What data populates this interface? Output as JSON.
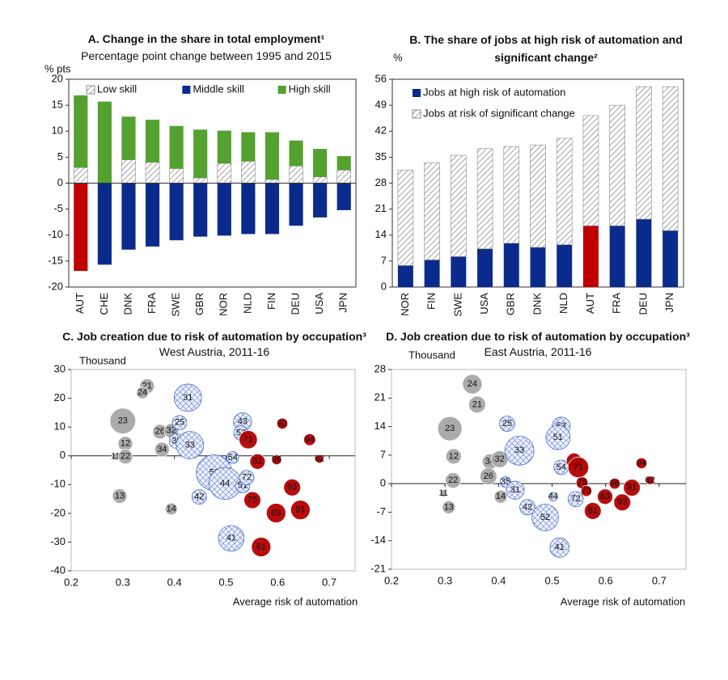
{
  "chart_data": [
    {
      "type": "bar",
      "title": "A. Change in the share in total employment¹",
      "subtitle": "Percentage point change between 1995 and 2015",
      "ylabel": "% pts",
      "legend": "top",
      "categories": [
        "AUT",
        "CHE",
        "DNK",
        "FRA",
        "SWE",
        "GBR",
        "NOR",
        "NLD",
        "FIN",
        "DEU",
        "USA",
        "JPN"
      ],
      "series": [
        {
          "name": "Low skill",
          "color": "#7f7f7f",
          "pattern": "hatch",
          "values": [
            3,
            0,
            4.5,
            4,
            2.8,
            1,
            3.8,
            4.2,
            0.7,
            3.3,
            1.2,
            2.5
          ]
        },
        {
          "name": "Middle skill",
          "color": "#0b2b8c",
          "colors": [
            "#c00000",
            "#0b2b8c",
            "#0b2b8c",
            "#0b2b8c",
            "#0b2b8c",
            "#0b2b8c",
            "#0b2b8c",
            "#0b2b8c",
            "#0b2b8c",
            "#0b2b8c",
            "#0b2b8c",
            "#0b2b8c"
          ],
          "values": [
            -16.9,
            -15.7,
            -12.8,
            -12.2,
            -11,
            -10.3,
            -10.1,
            -9.8,
            -9.8,
            -8.2,
            -6.6,
            -5.2
          ]
        },
        {
          "name": "High skill",
          "color": "#53a12f",
          "values": [
            13.9,
            15.7,
            8.3,
            8.2,
            8.2,
            9.3,
            6.3,
            5.6,
            9.1,
            4.9,
            5.4,
            2.7
          ]
        }
      ],
      "ylim": [
        -20,
        20
      ],
      "yticks": [
        -20,
        -15,
        -10,
        -5,
        0,
        5,
        10,
        15,
        20
      ]
    },
    {
      "type": "bar",
      "title": "B. The share of jobs at high risk of automation and significant change²",
      "ylabel": "%",
      "legend": "upper left",
      "categories": [
        "NOR",
        "FIN",
        "SWE",
        "USA",
        "GBR",
        "DNK",
        "NLD",
        "AUT",
        "FRA",
        "DEU",
        "JPN"
      ],
      "series": [
        {
          "name": "Jobs at high risk of automation",
          "color": "#0b2b8c",
          "colors": [
            "#0b2b8c",
            "#0b2b8c",
            "#0b2b8c",
            "#0b2b8c",
            "#0b2b8c",
            "#0b2b8c",
            "#0b2b8c",
            "#c00000",
            "#0b2b8c",
            "#0b2b8c",
            "#0b2b8c"
          ],
          "values": [
            5.8,
            7.3,
            8.2,
            10.3,
            11.8,
            10.7,
            11.4,
            16.5,
            16.5,
            18.3,
            15.2
          ]
        },
        {
          "name": "Jobs at risk of significant change",
          "color": "#7f7f7f",
          "pattern": "hatch",
          "values": [
            25.7,
            26.2,
            27.3,
            27.0,
            26.0,
            27.6,
            28.7,
            29.7,
            32.5,
            35.7,
            38.8
          ]
        }
      ],
      "ylim": [
        0,
        56
      ],
      "yticks": [
        0,
        7,
        14,
        21,
        28,
        35,
        42,
        49,
        56
      ]
    },
    {
      "type": "bubble",
      "title": "C. Job creation due to risk of automation by occupation³",
      "subtitle": "West Austria, 2011-16",
      "ylabel": "Thousand",
      "xlabel": "Average risk of automation",
      "xlim": [
        0.2,
        0.75
      ],
      "xticks": [
        0.2,
        0.3,
        0.4,
        0.5,
        0.6,
        0.7
      ],
      "ylim": [
        -40,
        30
      ],
      "yticks": [
        -40,
        -30,
        -20,
        -10,
        0,
        10,
        20,
        30
      ],
      "series": [
        {
          "color": "#a6a6a6",
          "labels": [
            "21",
            "24",
            "23",
            "26",
            "32",
            "12",
            "34",
            "11",
            "22",
            "13",
            "14"
          ],
          "x": [
            0.347,
            0.338,
            0.3,
            0.372,
            0.394,
            0.305,
            0.376,
            0.286,
            0.305,
            0.294,
            0.394
          ],
          "values": [
            24.2,
            21.9,
            12.1,
            8.4,
            8.7,
            4.2,
            2.2,
            -0.3,
            -0.3,
            -14,
            -18.5
          ],
          "sizes": [
            9,
            6,
            28,
            9,
            9,
            9,
            9,
            2,
            9,
            9,
            6
          ]
        },
        {
          "color": "#3a5fcd",
          "pattern": "crosshatch",
          "labels": [
            "31",
            "25",
            "35",
            "33",
            "43",
            "53",
            "54",
            "52",
            "44",
            "51",
            "72",
            "42",
            "41"
          ],
          "x": [
            0.426,
            0.41,
            0.404,
            0.43,
            0.532,
            0.529,
            0.513,
            0.477,
            0.498,
            0.532,
            0.54,
            0.448,
            0.51
          ],
          "values": [
            20.2,
            11.5,
            5.1,
            3.7,
            11.8,
            7.9,
            -0.6,
            -5.9,
            -9.6,
            -10.4,
            -7.6,
            -14.3,
            -28.7
          ],
          "sizes": [
            32,
            9,
            9,
            32,
            14,
            9,
            6,
            54,
            44,
            9,
            9,
            9,
            28
          ]
        },
        {
          "color": "#b30000",
          "labels": [
            "62",
            "92",
            "71",
            "81",
            "96",
            "94",
            "93",
            "75",
            "83",
            "91",
            "61"
          ],
          "x": [
            0.681,
            0.609,
            0.543,
            0.561,
            0.598,
            0.662,
            0.628,
            0.551,
            0.597,
            0.644,
            0.568
          ],
          "values": [
            -1.1,
            11.2,
            5.6,
            -2,
            -1.4,
            5.6,
            -11,
            -15.4,
            -19.9,
            -18.8,
            -31.7
          ],
          "sizes": [
            3,
            5,
            14,
            10,
            4,
            6,
            12,
            12,
            16,
            16,
            16
          ]
        }
      ]
    },
    {
      "type": "bubble",
      "title": "D. Job creation due to risk of automation by occupation³",
      "subtitle": "East Austria, 2011-16",
      "ylabel": "Thousand",
      "xlabel": "Average risk of automation",
      "xlim": [
        0.2,
        0.75
      ],
      "xticks": [
        0.2,
        0.3,
        0.4,
        0.5,
        0.6,
        0.7
      ],
      "ylim": [
        -21,
        28
      ],
      "yticks": [
        -21,
        -14,
        -7,
        0,
        7,
        14,
        21,
        28
      ],
      "series": [
        {
          "color": "#a6a6a6",
          "labels": [
            "24",
            "21",
            "23",
            "12",
            "34",
            "32",
            "22",
            "26",
            "11",
            "13",
            "14"
          ],
          "x": [
            0.351,
            0.36,
            0.309,
            0.316,
            0.384,
            0.402,
            0.315,
            0.381,
            0.297,
            0.307,
            0.404
          ],
          "values": [
            24.4,
            19.4,
            13.5,
            6.7,
            5.4,
            6.0,
            0.8,
            1.8,
            -2.4,
            -5.8,
            -3.2
          ],
          "sizes": [
            16,
            12,
            25,
            10,
            10,
            12,
            10,
            12,
            2,
            7,
            7
          ]
        },
        {
          "color": "#3a5fcd",
          "pattern": "crosshatch",
          "labels": [
            "25",
            "53",
            "51",
            "33",
            "54",
            "35",
            "31",
            "44",
            "42",
            "52",
            "41",
            "72"
          ],
          "x": [
            0.416,
            0.517,
            0.511,
            0.439,
            0.517,
            0.413,
            0.431,
            0.502,
            0.454,
            0.487,
            0.514,
            0.544
          ],
          "values": [
            14.7,
            14.1,
            11.3,
            8.1,
            4.0,
            0.4,
            -1.6,
            -3.2,
            -5.8,
            -8.3,
            -15.7,
            -3.8
          ],
          "sizes": [
            10,
            14,
            25,
            36,
            9,
            5,
            14,
            3,
            10,
            30,
            16,
            10
          ]
        },
        {
          "color": "#b30000",
          "labels": [
            "94",
            "43",
            "71",
            "75",
            "73",
            "96",
            "62",
            "83",
            "91",
            "93",
            "61"
          ],
          "x": [
            0.667,
            0.541,
            0.549,
            0.556,
            0.564,
            0.617,
            0.683,
            0.599,
            0.649,
            0.631,
            0.576
          ],
          "values": [
            5.0,
            5.6,
            4.0,
            0.2,
            -1.8,
            0,
            0.8,
            -3.2,
            -1,
            -4.6,
            -6.7
          ],
          "sizes": [
            5,
            10,
            18,
            6,
            5,
            5,
            3,
            10,
            12,
            12,
            12
          ]
        }
      ]
    }
  ]
}
